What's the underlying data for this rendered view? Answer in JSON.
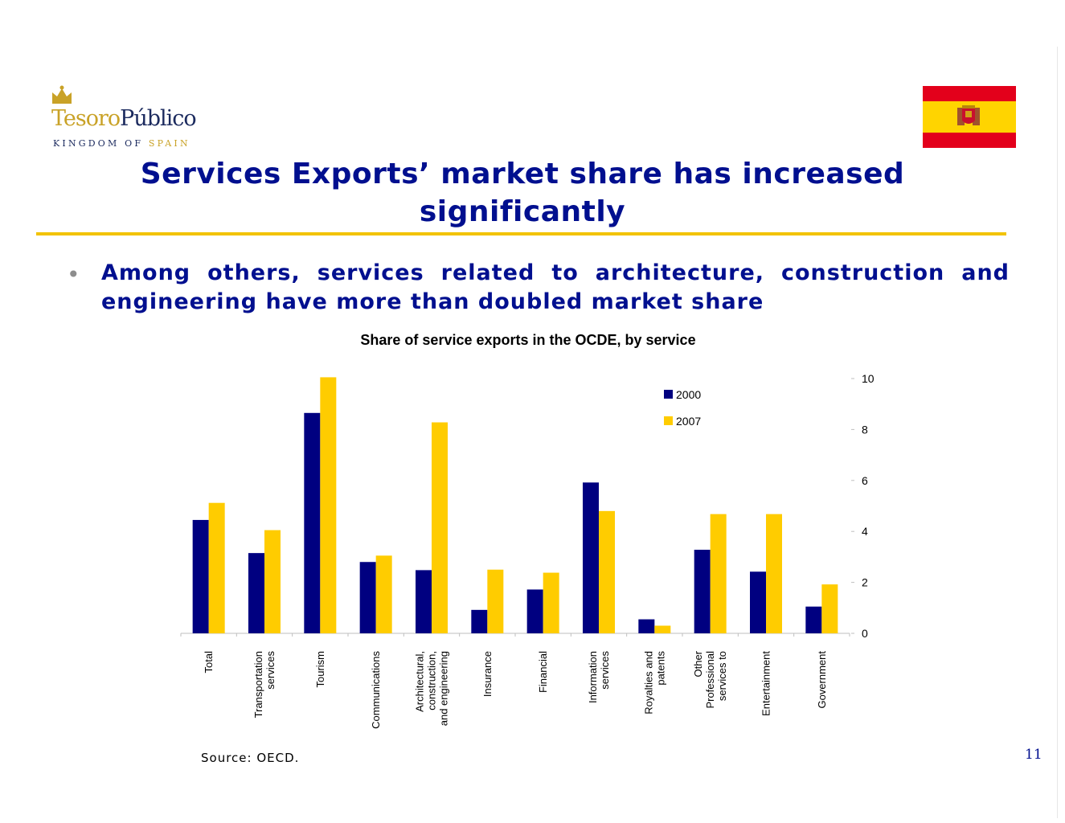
{
  "logo": {
    "brand_part1": "Tesoro",
    "brand_part2": "Público",
    "subtitle_part1": "KINGDOM OF ",
    "subtitle_part2": "SPAIN"
  },
  "slide": {
    "title": "Services Exports’ market share has increased significantly",
    "bullet": "Among others, services related to architecture, construction and engineering have more than doubled market share",
    "source": "Source: OECD.",
    "page_number": "11"
  },
  "colors": {
    "series_2000": "#000080",
    "series_2007": "#ffcc00",
    "title_blue": "#000f8f",
    "rule_gold": "#f2c300"
  },
  "chart_data": {
    "type": "bar",
    "title": "Share of service exports in the OCDE, by service",
    "categories": [
      [
        "Total"
      ],
      [
        "Transportation",
        "services"
      ],
      [
        "Tourism"
      ],
      [
        "Communications"
      ],
      [
        "Architectural,",
        "construction,",
        "and engineering"
      ],
      [
        "Insurance"
      ],
      [
        "Financial"
      ],
      [
        "Information",
        "services"
      ],
      [
        "Royalties and",
        "patents"
      ],
      [
        "Other",
        "Professional",
        "services to"
      ],
      [
        "Entertainment"
      ],
      [
        "Government"
      ]
    ],
    "series": [
      {
        "name": "2000",
        "values": [
          4.45,
          3.15,
          8.65,
          2.8,
          2.48,
          0.92,
          1.72,
          5.92,
          0.55,
          3.28,
          2.42,
          1.05
        ]
      },
      {
        "name": "2007",
        "values": [
          5.12,
          4.05,
          10.05,
          3.05,
          8.28,
          2.5,
          2.38,
          4.8,
          0.3,
          4.68,
          4.68,
          1.92
        ]
      }
    ],
    "ylim": [
      0,
      10
    ],
    "yticks": [
      0,
      2,
      4,
      6,
      8,
      10
    ],
    "yaxis_side": "right",
    "legend_position": "top-right",
    "grid": false
  }
}
